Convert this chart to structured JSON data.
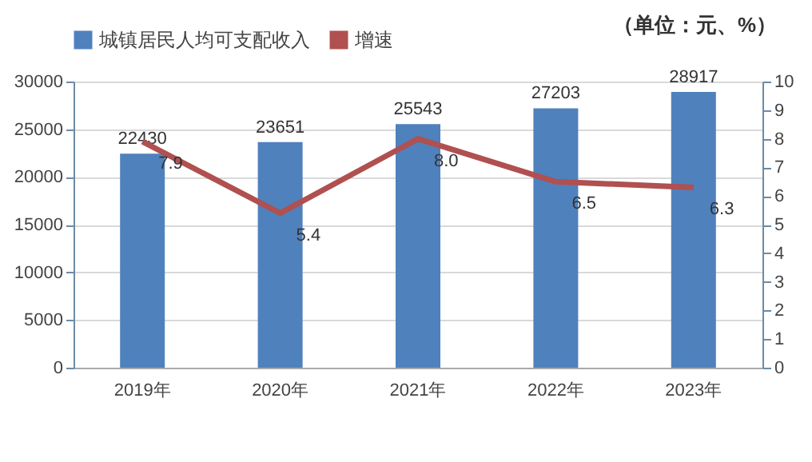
{
  "chart_data": {
    "type": "bar",
    "categories": [
      "2019年",
      "2020年",
      "2021年",
      "2022年",
      "2023年"
    ],
    "series": [
      {
        "name": "城镇居民人均可支配收入",
        "color": "#4f81bd",
        "values": [
          22430,
          23651,
          25543,
          27203,
          28917
        ],
        "value_labels": [
          "22430",
          "23651",
          "25543",
          "27203",
          "28917"
        ]
      },
      {
        "name": "增速",
        "type": "line",
        "axis": "y2",
        "color": "#b05050",
        "line_style": "solid",
        "values": [
          7.9,
          5.4,
          8.0,
          6.5,
          6.3
        ],
        "value_labels": [
          "7.9",
          "5.4",
          "8.0",
          "6.5",
          "6.3"
        ]
      }
    ],
    "ylim": [
      0,
      30000
    ],
    "yticks": [
      0,
      5000,
      10000,
      15000,
      20000,
      25000,
      30000
    ],
    "y2lim": [
      0,
      10
    ],
    "y2ticks": [
      0,
      1,
      2,
      3,
      4,
      5,
      6,
      7,
      8,
      9,
      10
    ],
    "grid": "y",
    "legend": "top",
    "annotations": [
      "（单位：元、%）"
    ]
  }
}
